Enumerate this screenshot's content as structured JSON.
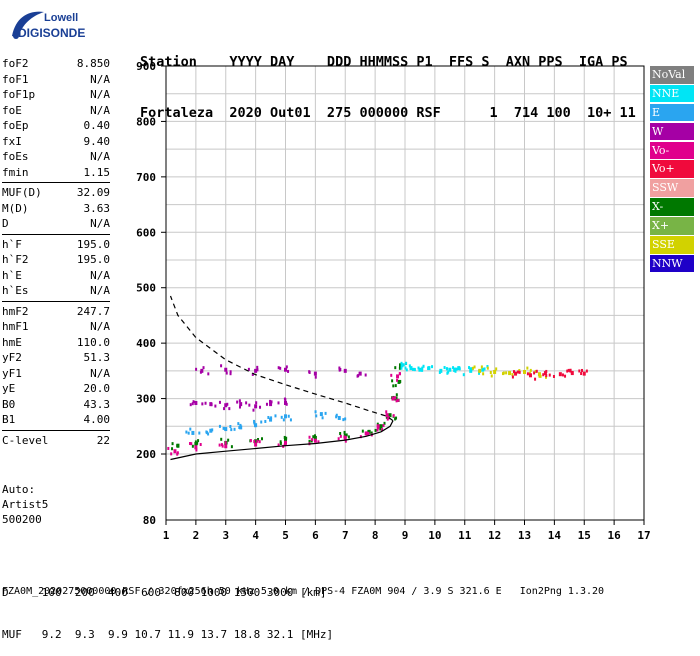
{
  "logo": {
    "line1": "Lowell",
    "line2": "DIGISONDE",
    "color": "#1a3f95"
  },
  "header": {
    "row1": "Station    YYYY DAY    DDD HHMMSS P1  FFS S  AXN PPS  IGA PS",
    "row2": "Fortaleza  2020 Out01  275 000000 RSF      1  714 100  10+ 11"
  },
  "params": [
    [
      {
        "k": "foF2",
        "v": "8.850"
      },
      {
        "k": "foF1",
        "v": "N/A"
      },
      {
        "k": "foF1p",
        "v": "N/A"
      },
      {
        "k": "foE",
        "v": "N/A"
      },
      {
        "k": "foEp",
        "v": "0.40"
      },
      {
        "k": "fxI",
        "v": "9.40"
      },
      {
        "k": "foEs",
        "v": "N/A"
      },
      {
        "k": "fmin",
        "v": "1.15"
      }
    ],
    [
      {
        "k": "MUF(D)",
        "v": "32.09"
      },
      {
        "k": "M(D)",
        "v": "3.63"
      },
      {
        "k": "D",
        "v": "N/A"
      }
    ],
    [
      {
        "k": "h`F",
        "v": "195.0"
      },
      {
        "k": "h`F2",
        "v": "195.0"
      },
      {
        "k": "h`E",
        "v": "N/A"
      },
      {
        "k": "h`Es",
        "v": "N/A"
      }
    ],
    [
      {
        "k": "hmF2",
        "v": "247.7"
      },
      {
        "k": "hmF1",
        "v": "N/A"
      },
      {
        "k": "hmE",
        "v": "110.0"
      },
      {
        "k": "yF2",
        "v": "51.3"
      },
      {
        "k": "yF1",
        "v": "N/A"
      },
      {
        "k": "yE",
        "v": "20.0"
      },
      {
        "k": "B0",
        "v": "43.3"
      },
      {
        "k": "B1",
        "v": "4.00"
      }
    ],
    [
      {
        "k": "C-level",
        "v": "22"
      }
    ]
  ],
  "extras": {
    "line1": "Auto:",
    "line2": "Artist5",
    "line3": "500200"
  },
  "legend": [
    {
      "label": "NoVal",
      "color": "#7f7f7f"
    },
    {
      "label": "NNE",
      "color": "#00e5f5"
    },
    {
      "label": "E",
      "color": "#2aa5f0"
    },
    {
      "label": "W",
      "color": "#a500a5"
    },
    {
      "label": "Vo-",
      "color": "#e0008c"
    },
    {
      "label": "Vo+",
      "color": "#f00a3c"
    },
    {
      "label": "SSW",
      "color": "#f0a0a0"
    },
    {
      "label": "X-",
      "color": "#007800"
    },
    {
      "label": "X+",
      "color": "#78b446"
    },
    {
      "label": "SSE",
      "color": "#d2d200"
    },
    {
      "label": "NNW",
      "color": "#1e00c8"
    }
  ],
  "bottom": {
    "row1": "D     100  200  400  600  800 1000 1500 3000 [km]",
    "row2": "MUF   9.2  9.3  9.9 10.7 11.9 13.7 18.8 32.1 [MHz]"
  },
  "footer": "FZA0M_2020275000000.RSF / 320fx256h 50 kHz 5.0 km / DPS-4 FZA0M 904 / 3.9 S 321.6 E   Ion2Png 1.3.20",
  "chart_data": {
    "type": "scatter",
    "title": "",
    "xlabel": "",
    "ylabel": "",
    "xlim": [
      1,
      17
    ],
    "ylim": [
      80,
      900
    ],
    "xticks": [
      "1",
      "2",
      "3",
      "4",
      "5",
      "6",
      "7",
      "8",
      "9",
      "10",
      "11",
      "12",
      "13",
      "14",
      "15",
      "16",
      "17"
    ],
    "yticks": [
      "200",
      "300",
      "400",
      "500",
      "600",
      "700",
      "800",
      "900"
    ],
    "ytick_80": "80",
    "grid": true,
    "series": [
      {
        "name": "X-",
        "color": "#007800",
        "points": [
          [
            1.4,
            215
          ],
          [
            2,
            218
          ],
          [
            3,
            220
          ],
          [
            4,
            223
          ],
          [
            5,
            226
          ],
          [
            6,
            229
          ],
          [
            7,
            233
          ],
          [
            7.8,
            240
          ],
          [
            8.2,
            250
          ],
          [
            8.5,
            270
          ],
          [
            8.7,
            300
          ],
          [
            8.8,
            330
          ],
          [
            8.85,
            360
          ]
        ]
      },
      {
        "name": "Vo-",
        "color": "#e0008c",
        "points": [
          [
            1.3,
            205
          ],
          [
            2,
            212
          ],
          [
            3,
            214
          ],
          [
            4,
            217
          ],
          [
            5,
            220
          ],
          [
            6,
            224
          ],
          [
            7,
            229
          ],
          [
            7.7,
            237
          ],
          [
            8.1,
            250
          ],
          [
            8.4,
            270
          ],
          [
            8.6,
            300
          ],
          [
            8.75,
            340
          ]
        ]
      },
      {
        "name": "E",
        "color": "#2aa5f0",
        "points": [
          [
            1.9,
            238
          ],
          [
            2.5,
            242
          ],
          [
            3,
            245
          ],
          [
            3.5,
            248
          ],
          [
            4,
            252
          ],
          [
            4.5,
            262
          ],
          [
            5,
            268
          ],
          [
            6.2,
            272
          ],
          [
            6.8,
            265
          ]
        ]
      },
      {
        "name": "W",
        "color": "#a500a5",
        "points": [
          [
            2,
            292
          ],
          [
            2.5,
            290
          ],
          [
            3,
            288
          ],
          [
            3.5,
            290
          ],
          [
            4,
            286
          ],
          [
            4.5,
            290
          ],
          [
            5,
            292
          ],
          [
            2.2,
            350
          ],
          [
            3,
            352
          ],
          [
            4,
            350
          ],
          [
            5,
            352
          ],
          [
            6,
            345
          ],
          [
            7,
            350
          ],
          [
            7.5,
            345
          ]
        ]
      },
      {
        "name": "NNE",
        "color": "#00e5f5",
        "points": [
          [
            8.9,
            360
          ],
          [
            9.2,
            355
          ],
          [
            9.5,
            352
          ],
          [
            9.8,
            355
          ],
          [
            10.2,
            350
          ],
          [
            10.5,
            352
          ],
          [
            10.8,
            355
          ],
          [
            11.2,
            350
          ],
          [
            11.6,
            352
          ]
        ]
      },
      {
        "name": "SSE",
        "color": "#d2d200",
        "points": [
          [
            11.5,
            350
          ],
          [
            12,
            348
          ],
          [
            12.5,
            346
          ],
          [
            13,
            348
          ],
          [
            13.5,
            344
          ]
        ]
      },
      {
        "name": "Vo+",
        "color": "#f00a3c",
        "points": [
          [
            12.7,
            345
          ],
          [
            13.2,
            342
          ],
          [
            13.7,
            346
          ],
          [
            14.2,
            344
          ],
          [
            14.6,
            346
          ],
          [
            15,
            345
          ]
        ]
      }
    ],
    "profile_curve": [
      [
        1.15,
        190
      ],
      [
        2,
        200
      ],
      [
        3,
        205
      ],
      [
        4,
        210
      ],
      [
        5,
        215
      ],
      [
        6,
        219
      ],
      [
        7,
        225
      ],
      [
        7.7,
        232
      ],
      [
        8.2,
        240
      ],
      [
        8.5,
        250
      ],
      [
        8.6,
        260
      ],
      [
        8.4,
        268
      ],
      [
        7.8,
        278
      ],
      [
        7,
        292
      ],
      [
        6,
        308
      ],
      [
        5,
        325
      ],
      [
        4,
        343
      ],
      [
        3,
        370
      ],
      [
        2,
        410
      ],
      [
        1.4,
        450
      ],
      [
        1.15,
        485
      ]
    ]
  }
}
